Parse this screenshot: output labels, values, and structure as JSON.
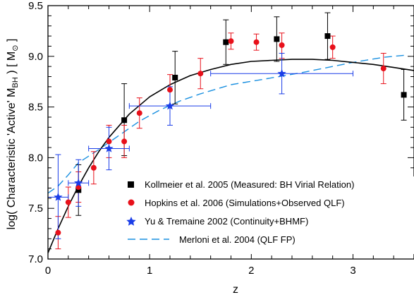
{
  "chart_data": {
    "type": "scatter",
    "title": "",
    "xlabel": "z",
    "ylabel_parts": [
      "log( Characteristic 'Active' M",
      "BH",
      " )  [ M",
      "⊙",
      " ]"
    ],
    "xlim": [
      0,
      3.6
    ],
    "ylim": [
      7.0,
      9.5
    ],
    "x_ticks": [
      "0",
      "1",
      "2",
      "3"
    ],
    "y_ticks": [
      "7.0",
      "7.5",
      "8.0",
      "8.5",
      "9.0",
      "9.5"
    ],
    "legend_position": "bottom-right",
    "series": [
      {
        "name": "Kollmeier et al. 2005 (Measured: BH Virial Relation)",
        "marker": "square",
        "color": "#000000",
        "points": [
          {
            "x": 0.3,
            "y": 7.68,
            "ylo": 7.43,
            "yhi": 7.93
          },
          {
            "x": 0.75,
            "y": 8.37,
            "ylo": 8.02,
            "yhi": 8.73
          },
          {
            "x": 1.25,
            "y": 8.79,
            "ylo": 8.53,
            "yhi": 9.05
          },
          {
            "x": 1.75,
            "y": 9.14,
            "ylo": 8.92,
            "yhi": 9.36
          },
          {
            "x": 2.25,
            "y": 9.17,
            "ylo": 8.95,
            "yhi": 9.39
          },
          {
            "x": 2.75,
            "y": 9.2,
            "ylo": 8.97,
            "yhi": 9.43
          },
          {
            "x": 3.5,
            "y": 8.62,
            "ylo": 8.37,
            "yhi": 8.87
          }
        ]
      },
      {
        "name": "Hopkins et al. 2006 (Simulations+Observed QLF)",
        "marker": "circle",
        "color": "#e8101a",
        "points": [
          {
            "x": 0.1,
            "y": 7.26,
            "ylo": 7.1,
            "yhi": 7.42
          },
          {
            "x": 0.2,
            "y": 7.56,
            "ylo": 7.41,
            "yhi": 7.71
          },
          {
            "x": 0.3,
            "y": 7.71,
            "ylo": 7.56,
            "yhi": 7.86
          },
          {
            "x": 0.45,
            "y": 7.9,
            "ylo": 7.74,
            "yhi": 8.06
          },
          {
            "x": 0.6,
            "y": 8.16,
            "ylo": 8.0,
            "yhi": 8.32
          },
          {
            "x": 0.75,
            "y": 8.16,
            "ylo": 8.0,
            "yhi": 8.32
          },
          {
            "x": 0.9,
            "y": 8.44,
            "ylo": 8.29,
            "yhi": 8.59
          },
          {
            "x": 1.2,
            "y": 8.67,
            "ylo": 8.52,
            "yhi": 8.82
          },
          {
            "x": 1.5,
            "y": 8.83,
            "ylo": 8.68,
            "yhi": 8.98
          },
          {
            "x": 1.8,
            "y": 9.15,
            "ylo": 9.07,
            "yhi": 9.23
          },
          {
            "x": 2.05,
            "y": 9.14,
            "ylo": 9.06,
            "yhi": 9.22
          },
          {
            "x": 2.3,
            "y": 9.11,
            "ylo": 8.98,
            "yhi": 9.23
          },
          {
            "x": 2.8,
            "y": 9.09,
            "ylo": 8.98,
            "yhi": 9.2
          },
          {
            "x": 3.3,
            "y": 8.88,
            "ylo": 8.73,
            "yhi": 9.03
          }
        ]
      },
      {
        "name": "Yu & Tremaine 2002 (Continuity+BHMF)",
        "marker": "star",
        "color": "#1a3de8",
        "points": [
          {
            "x": 0.1,
            "y": 7.61,
            "ylo": 7.2,
            "yhi": 8.03,
            "xlo": 0.0,
            "xhi": 0.2
          },
          {
            "x": 0.3,
            "y": 7.75,
            "ylo": 7.52,
            "yhi": 7.98,
            "xlo": 0.2,
            "xhi": 0.4
          },
          {
            "x": 0.6,
            "y": 8.09,
            "ylo": 7.88,
            "yhi": 8.3,
            "xlo": 0.4,
            "xhi": 0.8
          },
          {
            "x": 1.2,
            "y": 8.51,
            "ylo": 8.32,
            "yhi": 8.7,
            "xlo": 0.8,
            "xhi": 1.6
          },
          {
            "x": 2.3,
            "y": 8.83,
            "ylo": 8.63,
            "yhi": 9.03,
            "xlo": 1.6,
            "xhi": 3.0
          }
        ]
      },
      {
        "name": "Merloni et al. 2004 (QLF FP)",
        "marker": "dashed-line",
        "color": "#1a90e0",
        "points": [
          {
            "x": 0.0,
            "y": 7.65
          },
          {
            "x": 0.1,
            "y": 7.72
          },
          {
            "x": 0.2,
            "y": 7.83
          },
          {
            "x": 0.3,
            "y": 7.95
          },
          {
            "x": 0.5,
            "y": 8.08
          },
          {
            "x": 0.7,
            "y": 8.22
          },
          {
            "x": 0.9,
            "y": 8.36
          },
          {
            "x": 1.1,
            "y": 8.47
          },
          {
            "x": 1.3,
            "y": 8.56
          },
          {
            "x": 1.5,
            "y": 8.63
          },
          {
            "x": 1.8,
            "y": 8.72
          },
          {
            "x": 2.1,
            "y": 8.77
          },
          {
            "x": 2.5,
            "y": 8.84
          },
          {
            "x": 3.0,
            "y": 8.94
          },
          {
            "x": 3.3,
            "y": 8.99
          },
          {
            "x": 3.5,
            "y": 9.01
          }
        ]
      },
      {
        "marker": "solid-line",
        "color": "#000000",
        "points": [
          {
            "x": 0.0,
            "y": 7.06
          },
          {
            "x": 0.1,
            "y": 7.3
          },
          {
            "x": 0.2,
            "y": 7.52
          },
          {
            "x": 0.3,
            "y": 7.72
          },
          {
            "x": 0.4,
            "y": 7.9
          },
          {
            "x": 0.5,
            "y": 8.06
          },
          {
            "x": 0.6,
            "y": 8.2
          },
          {
            "x": 0.8,
            "y": 8.43
          },
          {
            "x": 1.0,
            "y": 8.6
          },
          {
            "x": 1.2,
            "y": 8.72
          },
          {
            "x": 1.4,
            "y": 8.81
          },
          {
            "x": 1.6,
            "y": 8.87
          },
          {
            "x": 1.8,
            "y": 8.92
          },
          {
            "x": 2.0,
            "y": 8.95
          },
          {
            "x": 2.2,
            "y": 8.96
          },
          {
            "x": 2.4,
            "y": 8.97
          },
          {
            "x": 2.6,
            "y": 8.97
          },
          {
            "x": 2.8,
            "y": 8.96
          },
          {
            "x": 3.0,
            "y": 8.94
          },
          {
            "x": 3.2,
            "y": 8.92
          },
          {
            "x": 3.4,
            "y": 8.89
          },
          {
            "x": 3.6,
            "y": 8.86
          }
        ]
      }
    ]
  }
}
